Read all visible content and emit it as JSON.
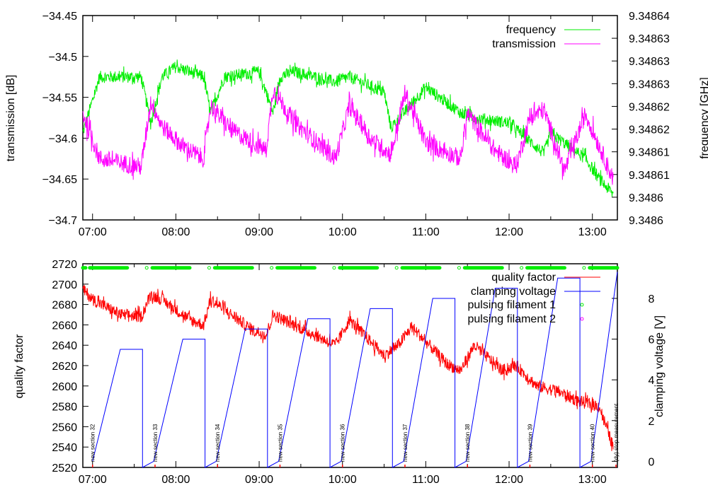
{
  "chart_data": [
    {
      "type": "line",
      "title": "",
      "xlabel": "",
      "ylabel": "transmission [dB]",
      "y2label": "frequency [GHz]",
      "xlim": [
        "06:53",
        "13:18"
      ],
      "ylim": [
        -34.7,
        -34.45
      ],
      "y2lim": [
        9.3486,
        9.34864
      ],
      "grid": false,
      "legend_position": "top-right",
      "x_ticks": [
        "07:00",
        "08:00",
        "09:00",
        "10:00",
        "11:00",
        "12:00",
        "13:00"
      ],
      "y_ticks": [
        "-34.45",
        "-34.5",
        "-34.55",
        "-34.6",
        "-34.65",
        "-34.7"
      ],
      "y2_ticks": [
        "9.34864",
        "9.34863",
        "9.34863",
        "9.34863",
        "9.34862",
        "9.34862",
        "9.34861",
        "9.34861",
        "9.3486",
        "9.3486"
      ],
      "series": [
        {
          "name": "frequency",
          "axis": "y2",
          "color": "#00ee00",
          "x": [
            "06:53",
            "07:05",
            "07:35",
            "07:42",
            "07:50",
            "08:00",
            "08:20",
            "08:25",
            "08:35",
            "09:00",
            "09:10",
            "09:15",
            "09:25",
            "09:55",
            "10:05",
            "10:30",
            "10:35",
            "11:00",
            "11:25",
            "11:35",
            "12:00",
            "12:25",
            "12:30",
            "12:55",
            "13:05",
            "13:15"
          ],
          "y": [
            9.348617,
            9.348628,
            9.348628,
            9.348619,
            9.348628,
            9.34863,
            9.348628,
            9.348621,
            9.348628,
            9.348629,
            9.348621,
            9.348628,
            9.348629,
            9.348627,
            9.348628,
            9.348625,
            9.348618,
            9.348626,
            9.348621,
            9.34862,
            9.348619,
            9.348613,
            9.348617,
            9.348612,
            9.348608,
            9.348605
          ]
        },
        {
          "name": "transmission",
          "axis": "y",
          "color": "#ff00ff",
          "x": [
            "06:53",
            "07:05",
            "07:35",
            "07:42",
            "07:50",
            "08:05",
            "08:20",
            "08:25",
            "08:40",
            "09:05",
            "09:10",
            "09:25",
            "09:55",
            "10:05",
            "10:20",
            "10:35",
            "10:45",
            "11:00",
            "11:25",
            "11:30",
            "11:50",
            "12:05",
            "12:15",
            "12:25",
            "12:40",
            "12:55",
            "13:15"
          ],
          "y": [
            -34.57,
            -34.625,
            -34.635,
            -34.555,
            -34.585,
            -34.61,
            -34.625,
            -34.56,
            -34.59,
            -34.615,
            -34.54,
            -34.58,
            -34.625,
            -34.56,
            -34.6,
            -34.62,
            -34.545,
            -34.605,
            -34.625,
            -34.57,
            -34.615,
            -34.635,
            -34.575,
            -34.565,
            -34.64,
            -34.57,
            -34.65
          ]
        }
      ]
    },
    {
      "type": "line",
      "title": "",
      "xlabel": "",
      "ylabel": "quality factor",
      "y2label": "clamping voltage [V]",
      "xlim": [
        "06:53",
        "13:18"
      ],
      "ylim": [
        2520,
        2720
      ],
      "y2lim": [
        -0.3,
        9.7
      ],
      "grid": false,
      "legend_position": "top-right",
      "x_ticks": [
        "07:00",
        "08:00",
        "09:00",
        "10:00",
        "11:00",
        "12:00",
        "13:00"
      ],
      "y_ticks": [
        "2720",
        "2700",
        "2680",
        "2660",
        "2640",
        "2620",
        "2600",
        "2580",
        "2560",
        "2540",
        "2520"
      ],
      "y2_ticks": [
        "8",
        "6",
        "4",
        "2",
        "0"
      ],
      "series": [
        {
          "name": "quality factor",
          "axis": "y",
          "color": "#ff0000",
          "x": [
            "06:53",
            "07:00",
            "07:20",
            "07:35",
            "07:42",
            "07:50",
            "08:10",
            "08:20",
            "08:25",
            "08:35",
            "08:55",
            "09:05",
            "09:10",
            "09:25",
            "09:55",
            "10:05",
            "10:30",
            "10:40",
            "10:50",
            "11:15",
            "11:25",
            "11:35",
            "11:55",
            "12:05",
            "12:20",
            "12:35",
            "12:50",
            "13:05",
            "13:15"
          ],
          "y": [
            2695,
            2685,
            2670,
            2668,
            2690,
            2685,
            2665,
            2660,
            2685,
            2675,
            2655,
            2650,
            2670,
            2660,
            2640,
            2665,
            2630,
            2640,
            2658,
            2622,
            2615,
            2640,
            2615,
            2620,
            2600,
            2595,
            2585,
            2580,
            2540
          ]
        },
        {
          "name": "clamping voltage",
          "axis": "y2",
          "color": "#0000ff",
          "x": [
            "07:00",
            "07:20",
            "07:36",
            "07:36",
            "07:44",
            "08:05",
            "08:21",
            "08:21",
            "08:29",
            "08:50",
            "09:06",
            "09:06",
            "09:14",
            "09:35",
            "09:51",
            "09:51",
            "09:59",
            "10:20",
            "10:36",
            "10:36",
            "10:44",
            "11:05",
            "11:21",
            "11:21",
            "11:29",
            "11:50",
            "12:06",
            "12:06",
            "12:14",
            "12:35",
            "12:51",
            "12:51",
            "12:59",
            "13:18"
          ],
          "y": [
            0,
            5.5,
            5.5,
            -0.3,
            0,
            6,
            6,
            -0.3,
            0,
            6.5,
            6.5,
            -0.3,
            0,
            7,
            7,
            -0.3,
            0,
            7.5,
            7.5,
            -0.3,
            0,
            8,
            8,
            -0.3,
            0,
            8.5,
            8.5,
            -0.3,
            0,
            9,
            9,
            -0.3,
            0,
            9.3
          ]
        },
        {
          "name": "pulsing filament 1",
          "axis": "y",
          "color": "#00ee00",
          "marker": "circle",
          "segments": [
            [
              "06:53",
              "06:55"
            ],
            [
              "06:58",
              "07:25"
            ],
            [
              "07:39",
              "07:39"
            ],
            [
              "07:43",
              "08:10"
            ],
            [
              "08:24",
              "08:24"
            ],
            [
              "08:28",
              "08:55"
            ],
            [
              "09:09",
              "09:09"
            ],
            [
              "09:13",
              "09:40"
            ],
            [
              "09:54",
              "09:54"
            ],
            [
              "09:58",
              "10:25"
            ],
            [
              "10:39",
              "10:39"
            ],
            [
              "10:43",
              "11:10"
            ],
            [
              "11:24",
              "11:24"
            ],
            [
              "11:28",
              "11:55"
            ],
            [
              "12:09",
              "12:09"
            ],
            [
              "12:13",
              "12:40"
            ],
            [
              "12:54",
              "12:54"
            ],
            [
              "12:58",
              "13:18"
            ]
          ],
          "y_level": 2716
        },
        {
          "name": "pulsing filament 2",
          "axis": "y",
          "color": "#ff00ff",
          "marker": "circle",
          "segments": []
        }
      ],
      "annotations": [
        {
          "x": "07:00",
          "text": "new section 32"
        },
        {
          "x": "07:45",
          "text": "new section 33"
        },
        {
          "x": "08:30",
          "text": "new section 34"
        },
        {
          "x": "09:15",
          "text": "new section 35"
        },
        {
          "x": "10:00",
          "text": "new section 36"
        },
        {
          "x": "10:45",
          "text": "new section 37"
        },
        {
          "x": "11:30",
          "text": "new section 38"
        },
        {
          "x": "12:15",
          "text": "new section 39"
        },
        {
          "x": "13:00",
          "text": "new section 40"
        },
        {
          "x": "13:17",
          "text": "(dy) stop measurement"
        }
      ]
    }
  ]
}
